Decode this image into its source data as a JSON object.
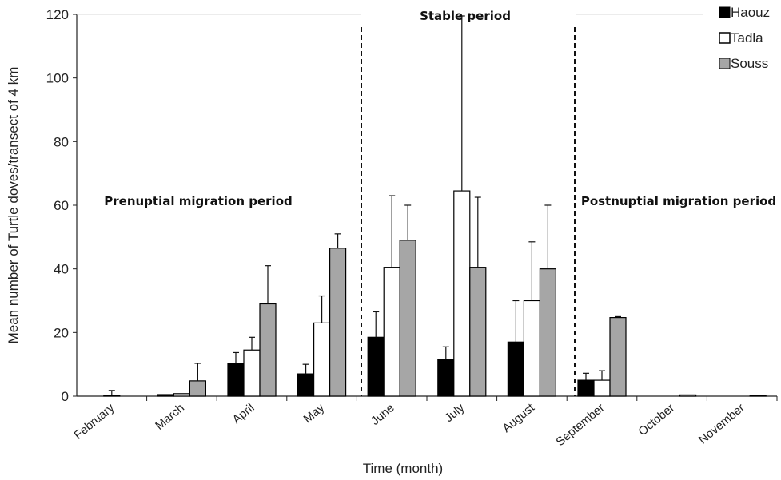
{
  "chart_data": {
    "type": "bar",
    "categories": [
      "February",
      "March",
      "April",
      "May",
      "June",
      "July",
      "August",
      "September",
      "October",
      "November"
    ],
    "series": [
      {
        "name": "Haouz",
        "color": "#000000",
        "values": [
          0,
          0.5,
          10.2,
          7,
          18.5,
          11.5,
          17,
          5,
          0,
          0
        ],
        "errors": [
          0,
          0,
          3.5,
          3,
          8,
          4,
          13,
          2.2,
          0,
          0
        ]
      },
      {
        "name": "Tadla",
        "color": "#ffffff",
        "values": [
          0.3,
          0.8,
          14.5,
          23,
          40.5,
          64.5,
          30,
          5,
          0,
          0
        ],
        "errors": [
          1.5,
          0,
          4,
          8.5,
          22.5,
          55,
          18.5,
          3,
          0,
          0
        ]
      },
      {
        "name": "Souss",
        "color": "#a6a6a6",
        "values": [
          0,
          4.8,
          29,
          46.5,
          49,
          40.5,
          40,
          24.7,
          0.4,
          0.3
        ],
        "errors": [
          0,
          5.5,
          12,
          4.5,
          11,
          22,
          20,
          0.3,
          0,
          0
        ]
      }
    ],
    "xlabel": "Time (month)",
    "ylabel": "Mean number of Turtle doves/transect of 4 km",
    "ylim": [
      0,
      120
    ],
    "yticks": [
      "0",
      "20",
      "40",
      "60",
      "80",
      "100",
      "120"
    ],
    "grid": false,
    "legend_position": "top-right",
    "annotations": [
      {
        "text": "Prenuptial migration period"
      },
      {
        "text": "Stable period"
      },
      {
        "text": "Postnuptial migration period"
      }
    ]
  }
}
